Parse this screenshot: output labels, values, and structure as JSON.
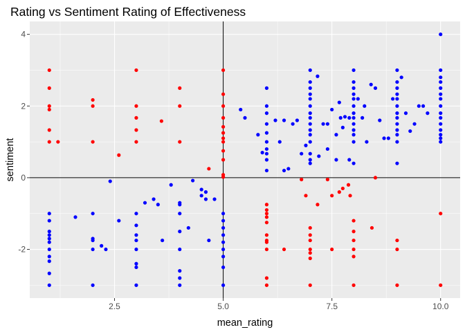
{
  "chart_data": {
    "type": "scatter",
    "title": "Rating vs Sentiment Rating of Effectiveness",
    "xlabel": "mean_rating",
    "ylabel": "sentiment",
    "xlim": [
      0.55,
      10.45
    ],
    "ylim": [
      -3.36,
      4.36
    ],
    "x_ticks": [
      2.5,
      5.0,
      7.5,
      10.0
    ],
    "x_tick_labels": [
      "2.5",
      "5.0",
      "7.5",
      "10.0"
    ],
    "y_ticks": [
      -2,
      0,
      2,
      4
    ],
    "y_tick_labels": [
      "-2",
      "0",
      "2",
      "4"
    ],
    "grid": true,
    "reference_lines": {
      "x": 5.0,
      "y": 0
    },
    "colors": {
      "panel": "#ebebeb",
      "grid_major": "#ffffff",
      "red": "#ff0000",
      "blue": "#0000ff",
      "reference_line": "#000000"
    },
    "series": [
      {
        "color": "red",
        "points": [
          [
            1,
            3
          ],
          [
            1,
            2.5
          ],
          [
            1,
            2
          ],
          [
            1,
            1.9
          ],
          [
            1,
            1.33
          ],
          [
            1,
            1
          ],
          [
            1.2,
            1
          ],
          [
            2,
            2.17
          ],
          [
            2,
            2
          ],
          [
            2,
            1
          ],
          [
            2.6,
            0.63
          ],
          [
            3,
            3
          ],
          [
            3,
            2
          ],
          [
            3,
            1.67
          ],
          [
            3,
            1.33
          ],
          [
            3,
            1
          ],
          [
            3.58,
            1.58
          ],
          [
            4,
            2.5
          ],
          [
            4,
            2
          ],
          [
            4,
            1
          ],
          [
            4.67,
            0.25
          ],
          [
            5,
            3
          ],
          [
            5,
            2.33
          ],
          [
            5,
            2
          ],
          [
            5,
            1.67
          ],
          [
            5,
            1.42
          ],
          [
            5,
            1.25
          ],
          [
            5,
            1.1
          ],
          [
            5,
            1
          ],
          [
            5,
            0.75
          ],
          [
            5,
            0.5
          ],
          [
            5,
            0.08
          ],
          [
            5,
            0.02
          ],
          [
            6,
            -0.75
          ],
          [
            6,
            -0.9
          ],
          [
            6,
            -1
          ],
          [
            6,
            -1.1
          ],
          [
            6,
            -1.25
          ],
          [
            6,
            -1.6
          ],
          [
            6,
            -1.75
          ],
          [
            6,
            -1.8
          ],
          [
            6,
            -2
          ],
          [
            6,
            -2.8
          ],
          [
            6,
            -3
          ],
          [
            6.4,
            -2
          ],
          [
            6.8,
            -0.05
          ],
          [
            6.9,
            -0.5
          ],
          [
            7,
            -1.4
          ],
          [
            7,
            -1.6
          ],
          [
            7,
            -1.75
          ],
          [
            7,
            -2
          ],
          [
            7,
            -2.1
          ],
          [
            7,
            -2.25
          ],
          [
            7,
            -3
          ],
          [
            7.17,
            -0.75
          ],
          [
            7.4,
            -0.05
          ],
          [
            7.5,
            -0.5
          ],
          [
            7.5,
            -2
          ],
          [
            7.67,
            -0.4
          ],
          [
            7.75,
            -0.3
          ],
          [
            7.88,
            -0.2
          ],
          [
            7.92,
            -0.5
          ],
          [
            8,
            -1.2
          ],
          [
            8,
            -1.5
          ],
          [
            8,
            -1.75
          ],
          [
            8,
            -2
          ],
          [
            8,
            -2.2
          ],
          [
            8,
            -3
          ],
          [
            8.42,
            -1.4
          ],
          [
            8.5,
            0
          ],
          [
            9,
            -1.75
          ],
          [
            9,
            -2
          ],
          [
            9,
            -3
          ],
          [
            10,
            -1
          ],
          [
            10,
            -3
          ]
        ]
      },
      {
        "color": "blue",
        "points": [
          [
            1,
            -1
          ],
          [
            1,
            -1.2
          ],
          [
            1,
            -1.5
          ],
          [
            1,
            -1.6
          ],
          [
            1,
            -1.7
          ],
          [
            1,
            -1.8
          ],
          [
            1,
            -2
          ],
          [
            1,
            -2.2
          ],
          [
            1,
            -2.33
          ],
          [
            1,
            -2.67
          ],
          [
            1,
            -3
          ],
          [
            1.6,
            -1.1
          ],
          [
            2,
            -1
          ],
          [
            2,
            -1.7
          ],
          [
            2,
            -1.75
          ],
          [
            2,
            -2
          ],
          [
            2,
            -3
          ],
          [
            2.2,
            -1.9
          ],
          [
            2.3,
            -2
          ],
          [
            2.4,
            -0.1
          ],
          [
            2.6,
            -1.2
          ],
          [
            3,
            -1
          ],
          [
            3,
            -1.33
          ],
          [
            3,
            -1.6
          ],
          [
            3,
            -1.75
          ],
          [
            3,
            -2
          ],
          [
            3,
            -2.4
          ],
          [
            3,
            -2.5
          ],
          [
            3,
            -3
          ],
          [
            3.2,
            -0.7
          ],
          [
            3.4,
            -0.6
          ],
          [
            3.5,
            -0.75
          ],
          [
            3.6,
            -1.75
          ],
          [
            3.8,
            -0.2
          ],
          [
            4,
            -0.7
          ],
          [
            4,
            -0.75
          ],
          [
            4,
            -1
          ],
          [
            4,
            -1.5
          ],
          [
            4,
            -2
          ],
          [
            4,
            -2.6
          ],
          [
            4,
            -2.8
          ],
          [
            4,
            -3
          ],
          [
            4.2,
            -1.4
          ],
          [
            4.3,
            -0.08
          ],
          [
            4.5,
            -0.33
          ],
          [
            4.5,
            -0.5
          ],
          [
            4.6,
            -0.4
          ],
          [
            4.6,
            -0.6
          ],
          [
            4.67,
            -1.75
          ],
          [
            4.8,
            -0.6
          ],
          [
            5,
            -1
          ],
          [
            5,
            -1.2
          ],
          [
            5,
            -1.4
          ],
          [
            5,
            -1.6
          ],
          [
            5,
            -1.8
          ],
          [
            5,
            -2
          ],
          [
            5,
            -2.2
          ],
          [
            5,
            -2.5
          ],
          [
            5,
            -3
          ],
          [
            5.4,
            1.9
          ],
          [
            5.5,
            1.67
          ],
          [
            5.8,
            1.2
          ],
          [
            5.9,
            0.7
          ],
          [
            6,
            2.5
          ],
          [
            6,
            2
          ],
          [
            6,
            1.8
          ],
          [
            6,
            1.5
          ],
          [
            6,
            1.25
          ],
          [
            6,
            1
          ],
          [
            6,
            0.8
          ],
          [
            6,
            0.67
          ],
          [
            6,
            0.5
          ],
          [
            6,
            0.2
          ],
          [
            6.2,
            1.6
          ],
          [
            6.3,
            1
          ],
          [
            6.4,
            1.6
          ],
          [
            6.4,
            0.2
          ],
          [
            6.5,
            0.25
          ],
          [
            6.6,
            1.5
          ],
          [
            6.7,
            1.6
          ],
          [
            6.8,
            0.67
          ],
          [
            6.9,
            0.9
          ],
          [
            7,
            3
          ],
          [
            7,
            2.67
          ],
          [
            7,
            2.5
          ],
          [
            7,
            2.33
          ],
          [
            7,
            2.2
          ],
          [
            7,
            2
          ],
          [
            7,
            1.8
          ],
          [
            7,
            1.67
          ],
          [
            7,
            1.5
          ],
          [
            7,
            1.33
          ],
          [
            7,
            1.2
          ],
          [
            7,
            1
          ],
          [
            7,
            0.67
          ],
          [
            7,
            0.5
          ],
          [
            7,
            0.4
          ],
          [
            7.17,
            2.83
          ],
          [
            7.2,
            0.6
          ],
          [
            7.3,
            1.5
          ],
          [
            7.4,
            1.5
          ],
          [
            7.4,
            0.8
          ],
          [
            7.5,
            1.9
          ],
          [
            7.6,
            1.2
          ],
          [
            7.6,
            0.5
          ],
          [
            7.67,
            2.1
          ],
          [
            7.7,
            1.67
          ],
          [
            7.75,
            1.4
          ],
          [
            7.8,
            1.7
          ],
          [
            7.9,
            1.67
          ],
          [
            7.9,
            0.5
          ],
          [
            8,
            3
          ],
          [
            8,
            2.67
          ],
          [
            8,
            2.5
          ],
          [
            8,
            2.33
          ],
          [
            8,
            2.2
          ],
          [
            8,
            2
          ],
          [
            8,
            1.8
          ],
          [
            8,
            1.67
          ],
          [
            8,
            1.5
          ],
          [
            8,
            1.33
          ],
          [
            8,
            1.2
          ],
          [
            8,
            1
          ],
          [
            8,
            0.4
          ],
          [
            8.1,
            2.2
          ],
          [
            8.2,
            1.67
          ],
          [
            8.25,
            2
          ],
          [
            8.3,
            1
          ],
          [
            8.4,
            2.6
          ],
          [
            8.5,
            2.5
          ],
          [
            8.6,
            1.6
          ],
          [
            8.7,
            1.1
          ],
          [
            8.8,
            1.1
          ],
          [
            8.9,
            2.2
          ],
          [
            9,
            3
          ],
          [
            9,
            2.67
          ],
          [
            9,
            2.5
          ],
          [
            9,
            2.33
          ],
          [
            9,
            2.2
          ],
          [
            9,
            2
          ],
          [
            9,
            1.8
          ],
          [
            9,
            1.67
          ],
          [
            9,
            1.5
          ],
          [
            9,
            1.33
          ],
          [
            9,
            1.2
          ],
          [
            9,
            1
          ],
          [
            9,
            0.4
          ],
          [
            9.1,
            2.8
          ],
          [
            9.2,
            1.8
          ],
          [
            9.3,
            1.3
          ],
          [
            9.4,
            1.5
          ],
          [
            9.5,
            2
          ],
          [
            9.6,
            2
          ],
          [
            9.7,
            1.8
          ],
          [
            10,
            4
          ],
          [
            10,
            3
          ],
          [
            10,
            2.8
          ],
          [
            10,
            2.67
          ],
          [
            10,
            2.5
          ],
          [
            10,
            2.33
          ],
          [
            10,
            2.2
          ],
          [
            10,
            2
          ],
          [
            10,
            1.8
          ],
          [
            10,
            1.67
          ],
          [
            10,
            1.5
          ],
          [
            10,
            1.33
          ],
          [
            10,
            1.2
          ],
          [
            10,
            1.1
          ],
          [
            10,
            1
          ]
        ]
      }
    ]
  }
}
